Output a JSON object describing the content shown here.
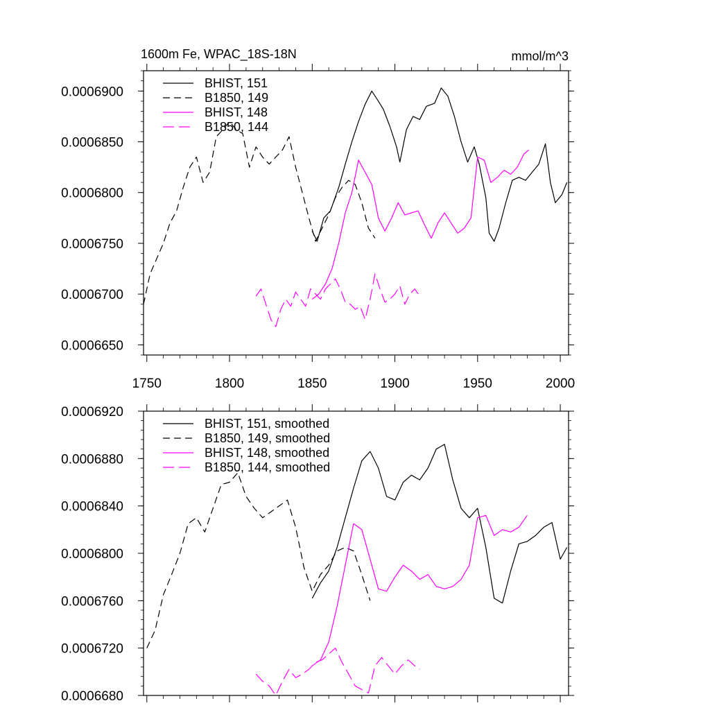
{
  "chart_data": [
    {
      "type": "line",
      "title": "1600m Fe, WPAC_18S-18N",
      "units": "mmol/m^3",
      "xlim": [
        1748,
        2005
      ],
      "ylim": [
        0.000664,
        0.000692
      ],
      "xticks": [
        1750,
        1800,
        1850,
        1900,
        1950,
        2000
      ],
      "xtick_labels": [
        "1750",
        "1800",
        "1850",
        "1900",
        "1950",
        "2000"
      ],
      "yticks": [
        0.000665,
        0.00067,
        0.000675,
        0.00068,
        0.000685,
        0.00069
      ],
      "ytick_labels": [
        "0.0006650",
        "0.0006700",
        "0.0006750",
        "0.0006800",
        "0.0006850",
        "0.0006900"
      ],
      "legend_position": "top-left",
      "series": [
        {
          "name": "BHIST, 151",
          "color": "#000000",
          "dash": "solid",
          "x": [
            1850,
            1853,
            1857,
            1861,
            1866,
            1870,
            1874,
            1878,
            1882,
            1886,
            1890,
            1893,
            1897,
            1901,
            1903,
            1907,
            1911,
            1915,
            1919,
            1924,
            1928,
            1932,
            1936,
            1940,
            1944,
            1948,
            1951,
            1955,
            1957,
            1960,
            1963,
            1967,
            1971,
            1975,
            1979,
            1983,
            1987,
            1991,
            1994,
            1997,
            2001,
            2004
          ],
          "y": [
            0.0006762,
            0.0006752,
            0.0006775,
            0.0006782,
            0.0006805,
            0.0006828,
            0.000685,
            0.000687,
            0.0006887,
            0.00069,
            0.000689,
            0.0006882,
            0.0006865,
            0.0006845,
            0.000683,
            0.0006862,
            0.0006875,
            0.0006872,
            0.0006885,
            0.0006888,
            0.0006903,
            0.0006895,
            0.0006875,
            0.000685,
            0.000683,
            0.0006845,
            0.0006828,
            0.0006795,
            0.000676,
            0.0006752,
            0.0006765,
            0.000679,
            0.0006812,
            0.0006815,
            0.0006812,
            0.000682,
            0.0006828,
            0.0006848,
            0.000681,
            0.000679,
            0.0006798,
            0.000681
          ]
        },
        {
          "name": "B1850, 149",
          "color": "#000000",
          "dash": "dashed",
          "x": [
            1748,
            1752,
            1756,
            1760,
            1764,
            1768,
            1772,
            1776,
            1780,
            1784,
            1788,
            1792,
            1796,
            1800,
            1804,
            1808,
            1812,
            1816,
            1820,
            1824,
            1828,
            1832,
            1836,
            1840,
            1844,
            1848,
            1852,
            1856,
            1860,
            1864,
            1868,
            1872,
            1876,
            1880,
            1884,
            1888
          ],
          "y": [
            0.000669,
            0.000672,
            0.0006735,
            0.000675,
            0.000677,
            0.0006782,
            0.0006805,
            0.0006825,
            0.0006835,
            0.000681,
            0.000682,
            0.0006855,
            0.0006862,
            0.000687,
            0.0006862,
            0.0006858,
            0.0006825,
            0.0006845,
            0.0006835,
            0.0006828,
            0.0006835,
            0.0006842,
            0.0006855,
            0.0006825,
            0.00068,
            0.0006775,
            0.0006752,
            0.0006765,
            0.0006778,
            0.0006795,
            0.0006805,
            0.0006812,
            0.0006808,
            0.000679,
            0.0006765,
            0.0006755
          ]
        },
        {
          "name": "BHIST, 148",
          "color": "#ff00ff",
          "dash": "solid",
          "x": [
            1850,
            1854,
            1858,
            1862,
            1866,
            1870,
            1874,
            1878,
            1882,
            1886,
            1890,
            1894,
            1898,
            1902,
            1906,
            1910,
            1914,
            1918,
            1922,
            1926,
            1930,
            1934,
            1938,
            1942,
            1946,
            1950,
            1954,
            1958,
            1962,
            1966,
            1970,
            1974,
            1978,
            1981
          ],
          "y": [
            0.0006695,
            0.00067,
            0.000671,
            0.0006725,
            0.000675,
            0.000678,
            0.00068,
            0.0006832,
            0.000682,
            0.0006808,
            0.0006775,
            0.0006762,
            0.0006775,
            0.000679,
            0.0006778,
            0.000678,
            0.0006782,
            0.0006768,
            0.0006755,
            0.000677,
            0.000678,
            0.000677,
            0.000676,
            0.0006765,
            0.0006775,
            0.0006835,
            0.0006832,
            0.000681,
            0.0006815,
            0.0006822,
            0.0006818,
            0.0006825,
            0.0006838,
            0.0006842
          ]
        },
        {
          "name": "B1850, 144",
          "color": "#ff00ff",
          "dash": "longdash",
          "x": [
            1816,
            1819,
            1822,
            1825,
            1828,
            1831,
            1834,
            1837,
            1840,
            1843,
            1846,
            1849,
            1852,
            1855,
            1858,
            1861,
            1864,
            1867,
            1870,
            1873,
            1876,
            1879,
            1882,
            1885,
            1888,
            1891,
            1894,
            1897,
            1900,
            1903,
            1906,
            1909,
            1912,
            1915
          ],
          "y": [
            0.0006698,
            0.0006705,
            0.000669,
            0.0006675,
            0.0006668,
            0.0006685,
            0.0006695,
            0.0006688,
            0.0006702,
            0.0006695,
            0.0006688,
            0.0006705,
            0.00067,
            0.0006695,
            0.0006705,
            0.000671,
            0.0006715,
            0.0006705,
            0.0006692,
            0.000669,
            0.0006685,
            0.0006688,
            0.0006675,
            0.0006695,
            0.000672,
            0.0006705,
            0.0006692,
            0.0006695,
            0.00067,
            0.0006708,
            0.000669,
            0.00067,
            0.0006705,
            0.0006698
          ]
        }
      ]
    },
    {
      "type": "line",
      "title": "",
      "units": "",
      "xlim": [
        1748,
        2005
      ],
      "ylim": [
        0.000668,
        0.000692
      ],
      "xticks": [
        1750,
        1800,
        1850,
        1900,
        1950,
        2000
      ],
      "xtick_labels": [
        "",
        "",
        "",
        "",
        "",
        ""
      ],
      "yticks": [
        0.000668,
        0.000672,
        0.000676,
        0.00068,
        0.000684,
        0.000688,
        0.000692
      ],
      "ytick_labels": [
        "0.0006680",
        "0.0006720",
        "0.0006760",
        "0.0006800",
        "0.0006840",
        "0.0006880",
        "0.0006920"
      ],
      "legend_position": "top-left",
      "series": [
        {
          "name": "BHIST, 151, smoothed",
          "color": "#000000",
          "dash": "solid",
          "x": [
            1850,
            1855,
            1860,
            1865,
            1870,
            1875,
            1880,
            1885,
            1890,
            1895,
            1900,
            1905,
            1910,
            1915,
            1920,
            1925,
            1930,
            1935,
            1940,
            1945,
            1950,
            1955,
            1960,
            1965,
            1970,
            1975,
            1980,
            1985,
            1990,
            1995,
            2000,
            2004
          ],
          "y": [
            0.0006762,
            0.0006775,
            0.0006785,
            0.0006805,
            0.000683,
            0.0006855,
            0.0006878,
            0.0006886,
            0.0006872,
            0.0006848,
            0.0006845,
            0.000686,
            0.0006866,
            0.0006862,
            0.0006872,
            0.0006888,
            0.0006892,
            0.0006862,
            0.0006838,
            0.000683,
            0.0006838,
            0.0006805,
            0.0006762,
            0.0006758,
            0.0006785,
            0.0006808,
            0.000681,
            0.0006815,
            0.0006822,
            0.0006826,
            0.0006795,
            0.0006805
          ]
        },
        {
          "name": "B1850, 149, smoothed",
          "color": "#000000",
          "dash": "dashed",
          "x": [
            1750,
            1755,
            1760,
            1765,
            1770,
            1775,
            1780,
            1785,
            1790,
            1795,
            1800,
            1805,
            1810,
            1815,
            1820,
            1825,
            1830,
            1835,
            1840,
            1845,
            1850,
            1855,
            1860,
            1865,
            1870,
            1875,
            1880,
            1885
          ],
          "y": [
            0.000672,
            0.0006735,
            0.0006765,
            0.0006782,
            0.00068,
            0.0006825,
            0.000683,
            0.0006818,
            0.0006838,
            0.0006858,
            0.000686,
            0.0006868,
            0.0006848,
            0.0006838,
            0.000683,
            0.0006835,
            0.000684,
            0.0006845,
            0.0006822,
            0.0006788,
            0.0006768,
            0.0006782,
            0.000679,
            0.0006802,
            0.0006805,
            0.0006802,
            0.0006782,
            0.000676
          ]
        },
        {
          "name": "BHIST, 148, smoothed",
          "color": "#ff00ff",
          "dash": "solid",
          "x": [
            1850,
            1855,
            1860,
            1865,
            1870,
            1875,
            1880,
            1885,
            1890,
            1895,
            1900,
            1905,
            1910,
            1915,
            1920,
            1925,
            1930,
            1935,
            1940,
            1945,
            1950,
            1955,
            1960,
            1965,
            1970,
            1975,
            1980
          ],
          "y": [
            0.0006705,
            0.000671,
            0.0006725,
            0.0006755,
            0.000679,
            0.0006825,
            0.000682,
            0.0006795,
            0.000677,
            0.0006768,
            0.000678,
            0.000679,
            0.0006785,
            0.0006778,
            0.0006782,
            0.0006772,
            0.000677,
            0.0006772,
            0.0006778,
            0.000679,
            0.000683,
            0.0006832,
            0.0006815,
            0.000682,
            0.0006818,
            0.0006822,
            0.0006832
          ]
        },
        {
          "name": "B1850, 144, smoothed",
          "color": "#ff00ff",
          "dash": "longdash",
          "x": [
            1816,
            1820,
            1824,
            1828,
            1832,
            1836,
            1840,
            1844,
            1848,
            1852,
            1856,
            1860,
            1864,
            1868,
            1872,
            1876,
            1880,
            1884,
            1888,
            1892,
            1896,
            1900,
            1904,
            1908,
            1912,
            1915
          ],
          "y": [
            0.0006698,
            0.0006692,
            0.0006688,
            0.000668,
            0.0006692,
            0.0006702,
            0.0006695,
            0.0006698,
            0.0006702,
            0.0006708,
            0.000671,
            0.0006715,
            0.000672,
            0.0006708,
            0.0006698,
            0.0006688,
            0.0006685,
            0.0006682,
            0.0006705,
            0.0006712,
            0.0006705,
            0.0006698,
            0.0006705,
            0.000671,
            0.0006705,
            0.0006702
          ]
        }
      ]
    }
  ]
}
